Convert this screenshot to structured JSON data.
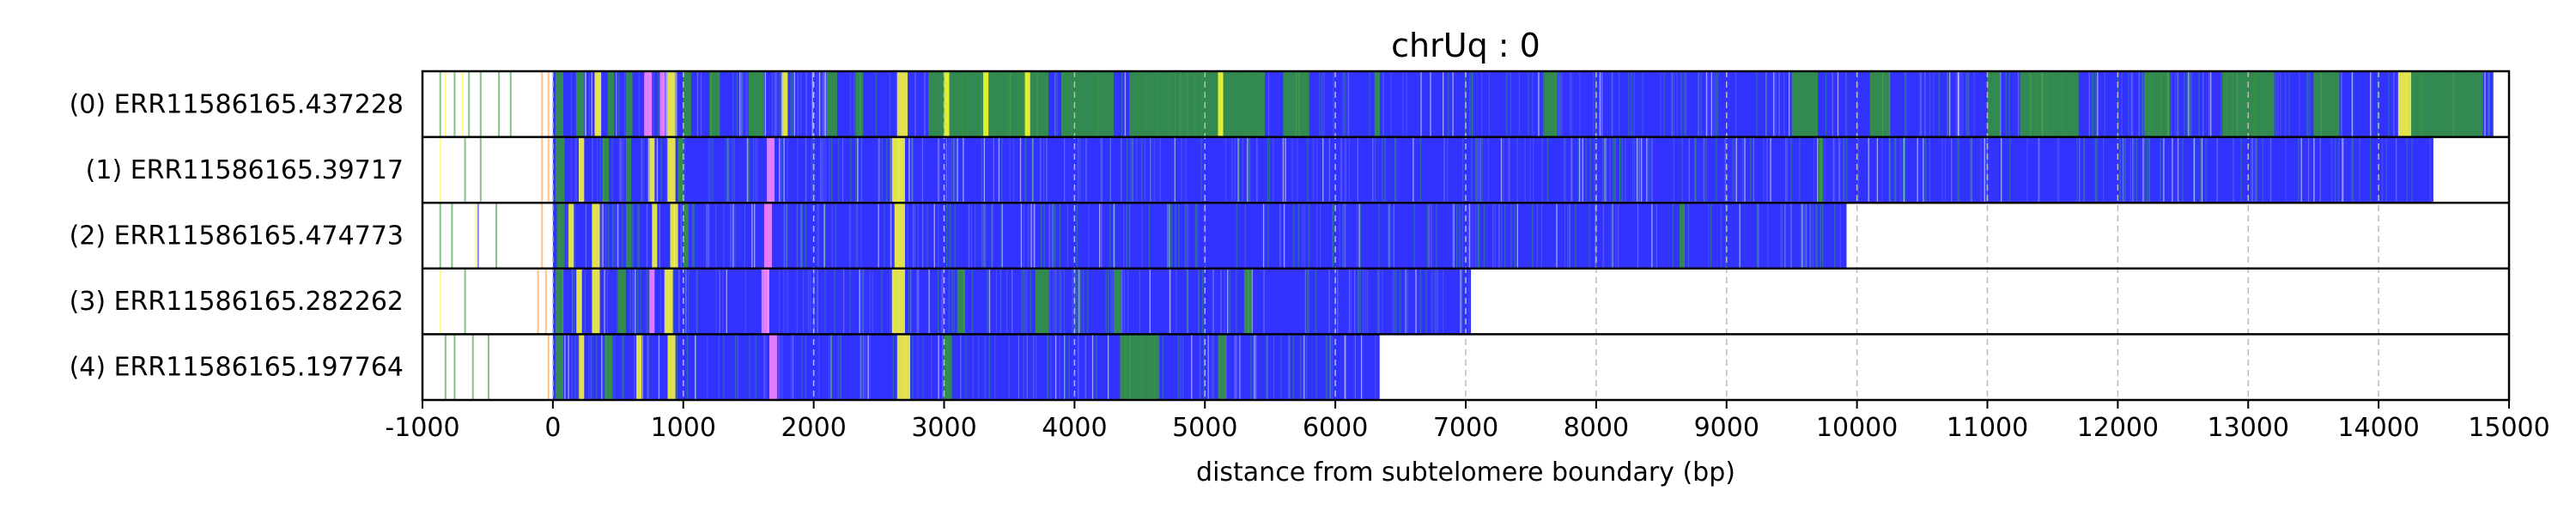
{
  "chart_data": {
    "type": "heatmap",
    "title": "chrUq : 0",
    "xlabel": "distance from subtelomere boundary (bp)",
    "xlim": [
      -1000,
      15000
    ],
    "xticks": [
      -1000,
      0,
      1000,
      2000,
      3000,
      4000,
      5000,
      6000,
      7000,
      8000,
      9000,
      10000,
      11000,
      12000,
      13000,
      14000,
      15000
    ],
    "grid": "vertical dashed",
    "colors": {
      "blue": "#3333ff",
      "green": "#339933",
      "yellow": "#ffff33",
      "pink": "#ff88ff",
      "orange": "#ff9933",
      "gray": "#cccccc"
    },
    "reads": [
      {
        "label": "(0) ERR11586165.437228",
        "start": 0,
        "end": 14880,
        "pre_marks": [
          {
            "x": -870,
            "color": "green"
          },
          {
            "x": -830,
            "color": "yellow"
          },
          {
            "x": -760,
            "color": "green"
          },
          {
            "x": -700,
            "color": "yellow"
          },
          {
            "x": -650,
            "color": "green"
          },
          {
            "x": -560,
            "color": "green"
          },
          {
            "x": -420,
            "color": "green"
          },
          {
            "x": -330,
            "color": "green"
          },
          {
            "x": -90,
            "color": "orange"
          },
          {
            "x": -40,
            "color": "orange"
          }
        ],
        "segments": [
          {
            "start": 20,
            "end": 80,
            "color": "green"
          },
          {
            "start": 180,
            "end": 240,
            "color": "green"
          },
          {
            "start": 320,
            "end": 370,
            "color": "yellow"
          },
          {
            "start": 420,
            "end": 470,
            "color": "green"
          },
          {
            "start": 560,
            "end": 610,
            "color": "green"
          },
          {
            "start": 700,
            "end": 760,
            "color": "pink"
          },
          {
            "start": 820,
            "end": 860,
            "color": "pink"
          },
          {
            "start": 880,
            "end": 940,
            "color": "yellow"
          },
          {
            "start": 1000,
            "end": 1060,
            "color": "green"
          },
          {
            "start": 1200,
            "end": 1280,
            "color": "green"
          },
          {
            "start": 1500,
            "end": 1620,
            "color": "green"
          },
          {
            "start": 1760,
            "end": 1800,
            "color": "yellow"
          },
          {
            "start": 2100,
            "end": 2180,
            "color": "green"
          },
          {
            "start": 2320,
            "end": 2380,
            "color": "green"
          },
          {
            "start": 2640,
            "end": 2720,
            "color": "yellow"
          },
          {
            "start": 2880,
            "end": 3800,
            "color": "green"
          },
          {
            "start": 3000,
            "end": 3040,
            "color": "yellow"
          },
          {
            "start": 3300,
            "end": 3340,
            "color": "yellow"
          },
          {
            "start": 3620,
            "end": 3660,
            "color": "yellow"
          },
          {
            "start": 3900,
            "end": 4300,
            "color": "green"
          },
          {
            "start": 4420,
            "end": 5460,
            "color": "green"
          },
          {
            "start": 5100,
            "end": 5140,
            "color": "yellow"
          },
          {
            "start": 5600,
            "end": 5800,
            "color": "green"
          },
          {
            "start": 6300,
            "end": 6340,
            "color": "green"
          },
          {
            "start": 7600,
            "end": 7700,
            "color": "green"
          },
          {
            "start": 9500,
            "end": 9700,
            "color": "green"
          },
          {
            "start": 10100,
            "end": 10250,
            "color": "green"
          },
          {
            "start": 11000,
            "end": 11100,
            "color": "green"
          },
          {
            "start": 11250,
            "end": 11700,
            "color": "green"
          },
          {
            "start": 12200,
            "end": 12400,
            "color": "green"
          },
          {
            "start": 12800,
            "end": 13200,
            "color": "green"
          },
          {
            "start": 13500,
            "end": 13700,
            "color": "green"
          },
          {
            "start": 14150,
            "end": 14250,
            "color": "yellow"
          },
          {
            "start": 14250,
            "end": 14800,
            "color": "green"
          }
        ]
      },
      {
        "label": "(1) ERR11586165.39717",
        "start": 0,
        "end": 14420,
        "pre_marks": [
          {
            "x": -870,
            "color": "yellow"
          },
          {
            "x": -680,
            "color": "green"
          },
          {
            "x": -560,
            "color": "green"
          },
          {
            "x": -90,
            "color": "orange"
          },
          {
            "x": -40,
            "color": "orange"
          }
        ],
        "segments": [
          {
            "start": 20,
            "end": 90,
            "color": "green"
          },
          {
            "start": 200,
            "end": 240,
            "color": "yellow"
          },
          {
            "start": 380,
            "end": 430,
            "color": "green"
          },
          {
            "start": 560,
            "end": 600,
            "color": "green"
          },
          {
            "start": 740,
            "end": 780,
            "color": "yellow"
          },
          {
            "start": 880,
            "end": 940,
            "color": "yellow"
          },
          {
            "start": 960,
            "end": 1000,
            "color": "green"
          },
          {
            "start": 1640,
            "end": 1700,
            "color": "pink"
          },
          {
            "start": 2600,
            "end": 2700,
            "color": "yellow"
          },
          {
            "start": 9700,
            "end": 9740,
            "color": "green"
          }
        ]
      },
      {
        "label": "(2) ERR11586165.474773",
        "start": 0,
        "end": 9920,
        "pre_marks": [
          {
            "x": -870,
            "color": "green"
          },
          {
            "x": -780,
            "color": "green"
          },
          {
            "x": -600,
            "color": "yellow"
          },
          {
            "x": -580,
            "color": "blue"
          },
          {
            "x": -440,
            "color": "green"
          },
          {
            "x": -90,
            "color": "orange"
          }
        ],
        "segments": [
          {
            "start": 30,
            "end": 90,
            "color": "green"
          },
          {
            "start": 120,
            "end": 160,
            "color": "yellow"
          },
          {
            "start": 300,
            "end": 360,
            "color": "yellow"
          },
          {
            "start": 560,
            "end": 600,
            "color": "green"
          },
          {
            "start": 760,
            "end": 800,
            "color": "yellow"
          },
          {
            "start": 900,
            "end": 960,
            "color": "yellow"
          },
          {
            "start": 1000,
            "end": 1040,
            "color": "green"
          },
          {
            "start": 1620,
            "end": 1680,
            "color": "pink"
          },
          {
            "start": 2620,
            "end": 2700,
            "color": "yellow"
          },
          {
            "start": 8640,
            "end": 8680,
            "color": "green"
          }
        ]
      },
      {
        "label": "(3) ERR11586165.282262",
        "start": 0,
        "end": 7040,
        "pre_marks": [
          {
            "x": -870,
            "color": "yellow"
          },
          {
            "x": -680,
            "color": "green"
          },
          {
            "x": -120,
            "color": "orange"
          },
          {
            "x": -60,
            "color": "orange"
          }
        ],
        "segments": [
          {
            "start": 20,
            "end": 80,
            "color": "green"
          },
          {
            "start": 180,
            "end": 220,
            "color": "yellow"
          },
          {
            "start": 300,
            "end": 360,
            "color": "yellow"
          },
          {
            "start": 500,
            "end": 560,
            "color": "green"
          },
          {
            "start": 740,
            "end": 780,
            "color": "pink"
          },
          {
            "start": 860,
            "end": 920,
            "color": "yellow"
          },
          {
            "start": 1600,
            "end": 1660,
            "color": "pink"
          },
          {
            "start": 2600,
            "end": 2700,
            "color": "yellow"
          },
          {
            "start": 3100,
            "end": 3160,
            "color": "green"
          },
          {
            "start": 3700,
            "end": 3800,
            "color": "green"
          },
          {
            "start": 4300,
            "end": 4360,
            "color": "green"
          },
          {
            "start": 5300,
            "end": 5360,
            "color": "green"
          }
        ]
      },
      {
        "label": "(4) ERR11586165.197764",
        "start": 0,
        "end": 6340,
        "pre_marks": [
          {
            "x": -830,
            "color": "green"
          },
          {
            "x": -760,
            "color": "green"
          },
          {
            "x": -620,
            "color": "green"
          },
          {
            "x": -500,
            "color": "green"
          },
          {
            "x": -40,
            "color": "orange"
          }
        ],
        "segments": [
          {
            "start": 20,
            "end": 80,
            "color": "green"
          },
          {
            "start": 200,
            "end": 240,
            "color": "yellow"
          },
          {
            "start": 400,
            "end": 460,
            "color": "green"
          },
          {
            "start": 640,
            "end": 680,
            "color": "yellow"
          },
          {
            "start": 880,
            "end": 940,
            "color": "yellow"
          },
          {
            "start": 1660,
            "end": 1720,
            "color": "pink"
          },
          {
            "start": 2640,
            "end": 2740,
            "color": "yellow"
          },
          {
            "start": 3000,
            "end": 3060,
            "color": "green"
          },
          {
            "start": 4350,
            "end": 4650,
            "color": "green"
          },
          {
            "start": 5100,
            "end": 5160,
            "color": "green"
          }
        ]
      }
    ]
  }
}
